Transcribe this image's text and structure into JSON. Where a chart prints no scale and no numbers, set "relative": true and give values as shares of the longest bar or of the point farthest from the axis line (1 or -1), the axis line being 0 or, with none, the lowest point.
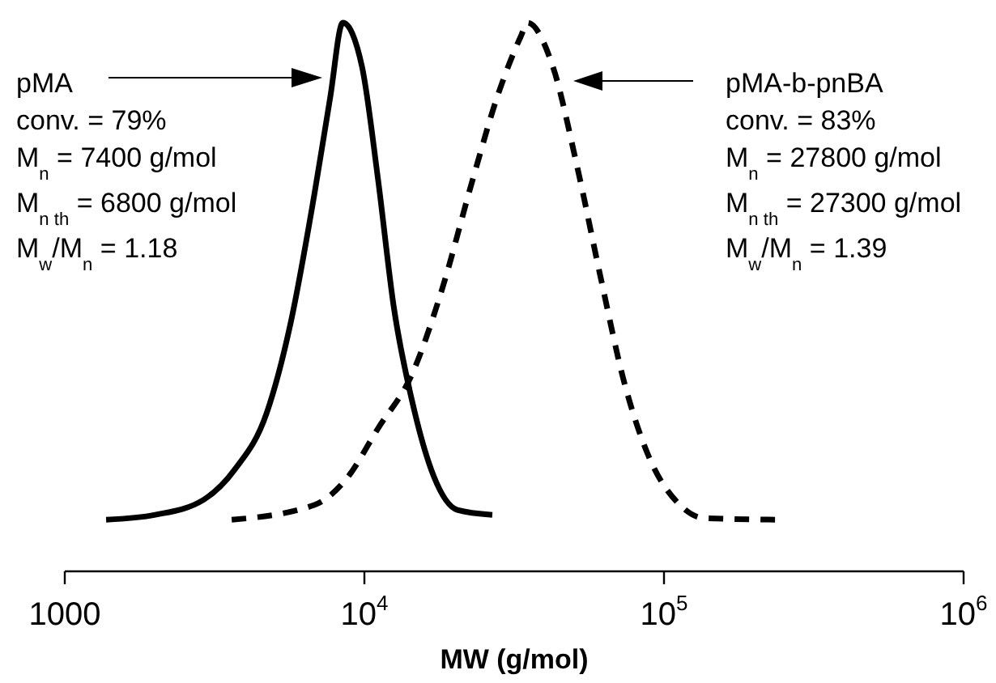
{
  "chart_data": {
    "type": "line",
    "relative": true,
    "xlabel": "MW (g/mol)",
    "log": "x",
    "xlim": [
      1000,
      1000000
    ],
    "xticks": [
      1000,
      {
        "value": 10000,
        "label": "10$^{4}$"
      },
      {
        "value": 100000,
        "label": "10$^{5}$"
      },
      {
        "value": 1000000,
        "label": "10$^{6}$"
      }
    ],
    "grid": false,
    "marker": "none",
    "tick_labels": "x",
    "series": [
      {
        "color": "#000000",
        "line_style": "solid",
        "x": [
          1374,
          2005,
          2897,
          3698,
          4722,
          5665,
          6808,
          7691,
          8472,
          9817,
          11090,
          12540,
          14520,
          17020,
          20420,
          26730
        ],
        "values": [
          0.094,
          0.103,
          0.13,
          0.186,
          0.289,
          0.451,
          0.687,
          0.864,
          1.0,
          0.92,
          0.717,
          0.481,
          0.304,
          0.174,
          0.112,
          0.103
        ]
      },
      {
        "color": "#000000",
        "line_style": "dashed",
        "x": [
          3606,
          6808,
          8690,
          11090,
          14520,
          18070,
          23070,
          27730,
          33340,
          35000,
          42560,
          51050,
          61380,
          73620,
          88520,
          113000,
          135800,
          242700
        ],
        "values": [
          0.094,
          0.121,
          0.168,
          0.26,
          0.363,
          0.51,
          0.717,
          0.864,
          0.976,
          1.0,
          0.92,
          0.743,
          0.537,
          0.345,
          0.212,
          0.121,
          0.097,
          0.094
        ]
      }
    ],
    "annotations": [
      "pMA",
      "conv. = 79%",
      "M$_{n}$ = 7400 g/mol",
      "M$_{n th}$ = 6800 g/mol",
      "M$_{w}$/M$_{n}$ = 1.18",
      "pMA-b-pnBA",
      "conv. = 83%",
      "M$_{n}$ = 27800 g/mol",
      "M$_{n th}$ = 27300 g/mol",
      "M$_{w}$/M$_{n}$ = 1.39"
    ]
  }
}
